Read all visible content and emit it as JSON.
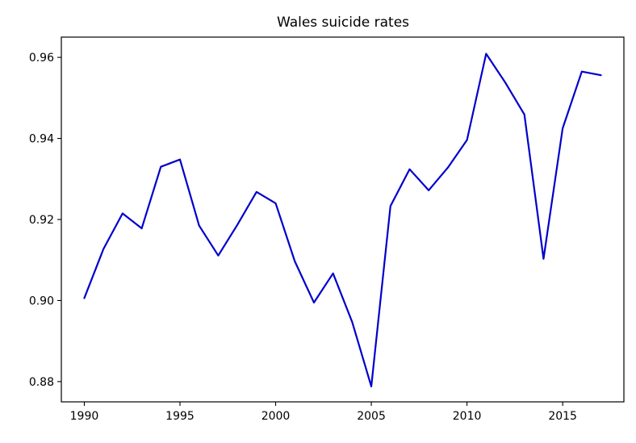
{
  "chart_data": {
    "type": "line",
    "title": "Wales suicide rates",
    "xlabel": "",
    "ylabel": "",
    "xlim": [
      1988.8,
      2018.2
    ],
    "ylim": [
      0.875,
      0.965
    ],
    "x_ticks": [
      1990,
      1995,
      2000,
      2005,
      2010,
      2015
    ],
    "y_ticks": [
      0.88,
      0.9,
      0.92,
      0.94,
      0.96
    ],
    "y_tick_labels": [
      "0.88",
      "0.90",
      "0.92",
      "0.94",
      "0.96"
    ],
    "grid": false,
    "series": [
      {
        "color": "#0000cc",
        "x": [
          1990,
          1991,
          1992,
          1993,
          1994,
          1995,
          1996,
          1997,
          1998,
          1999,
          2000,
          2001,
          2002,
          2003,
          2004,
          2005,
          2006,
          2007,
          2008,
          2009,
          2010,
          2011,
          2012,
          2013,
          2014,
          2015,
          2016,
          2017
        ],
        "y": [
          0.9006,
          0.9127,
          0.9215,
          0.9178,
          0.933,
          0.9348,
          0.9185,
          0.9111,
          0.9187,
          0.9268,
          0.924,
          0.9097,
          0.8995,
          0.9067,
          0.8947,
          0.8788,
          0.9233,
          0.9324,
          0.9272,
          0.9328,
          0.9396,
          0.9609,
          0.9538,
          0.9459,
          0.9103,
          0.9425,
          0.9565,
          0.9556
        ]
      }
    ]
  }
}
